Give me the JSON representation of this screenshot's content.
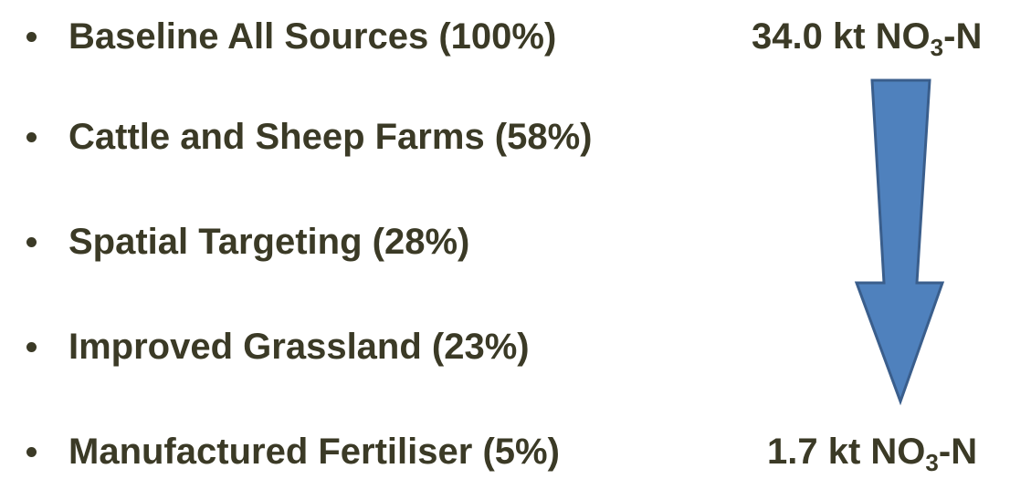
{
  "items": [
    "Baseline All Sources (100%)",
    "Cattle and Sheep Farms (58%)",
    "Spatial Targeting (28%)",
    "Improved Grassland (23%)",
    "Manufactured Fertiliser (5%)"
  ],
  "top_label": {
    "text": "34.0 kt NO",
    "sub": "3",
    "suffix": "-N"
  },
  "bottom_label": {
    "text": "1.7 kt NO",
    "sub": "3",
    "suffix": "-N"
  }
}
